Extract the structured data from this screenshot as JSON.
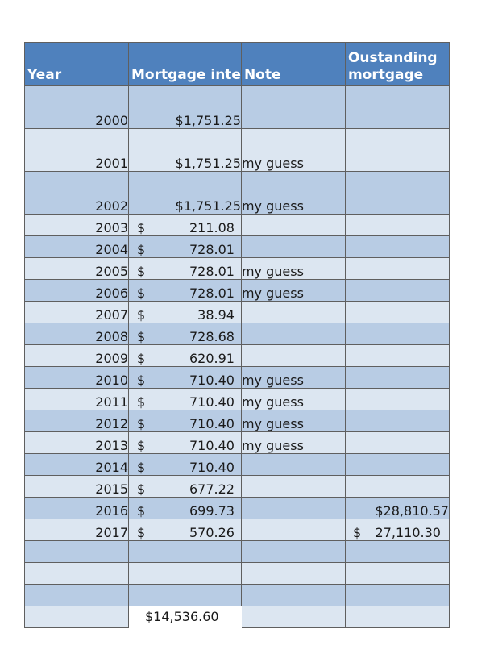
{
  "header": {
    "year": "Year",
    "mortgage": "Mortgage inte",
    "note": "Note",
    "outstanding": "Oustanding mortgage"
  },
  "rows": [
    {
      "year": "2000",
      "mortgage": "$1,751.25"
    },
    {
      "year": "2001",
      "mortgage": "$1,751.25",
      "note": "my guess"
    },
    {
      "year": "2002",
      "mortgage": "$1,751.25",
      "note": "my guess"
    },
    {
      "year": "2003",
      "mortgage_symbol": "$",
      "mortgage": "211.08"
    },
    {
      "year": "2004",
      "mortgage_symbol": "$",
      "mortgage": "728.01"
    },
    {
      "year": "2005",
      "mortgage_symbol": "$",
      "mortgage": "728.01",
      "note": "my guess"
    },
    {
      "year": "2006",
      "mortgage_symbol": "$",
      "mortgage": "728.01",
      "note": "my guess"
    },
    {
      "year": "2007",
      "mortgage_symbol": "$",
      "mortgage": "38.94"
    },
    {
      "year": "2008",
      "mortgage_symbol": "$",
      "mortgage": "728.68"
    },
    {
      "year": "2009",
      "mortgage_symbol": "$",
      "mortgage": "620.91"
    },
    {
      "year": "2010",
      "mortgage_symbol": "$",
      "mortgage": "710.40",
      "note": "my guess"
    },
    {
      "year": "2011",
      "mortgage_symbol": "$",
      "mortgage": "710.40",
      "note": "my guess"
    },
    {
      "year": "2012",
      "mortgage_symbol": "$",
      "mortgage": "710.40",
      "note": "my guess"
    },
    {
      "year": "2013",
      "mortgage_symbol": "$",
      "mortgage": "710.40",
      "note": "my guess"
    },
    {
      "year": "2014",
      "mortgage_symbol": "$",
      "mortgage": "710.40"
    },
    {
      "year": "2015",
      "mortgage_symbol": "$",
      "mortgage": "677.22"
    },
    {
      "year": "2016",
      "mortgage_symbol": "$",
      "mortgage": "699.73",
      "outstanding": "$28,810.57"
    },
    {
      "year": "2017",
      "mortgage_symbol": "$",
      "mortgage": "570.26",
      "outstanding_symbol": "$",
      "outstanding": "27,110.30"
    }
  ],
  "total": {
    "mortgage": "$14,536.60"
  },
  "colors": {
    "header": "#4f81bd",
    "band": "#b8cce4",
    "plain": "#dce6f1"
  }
}
